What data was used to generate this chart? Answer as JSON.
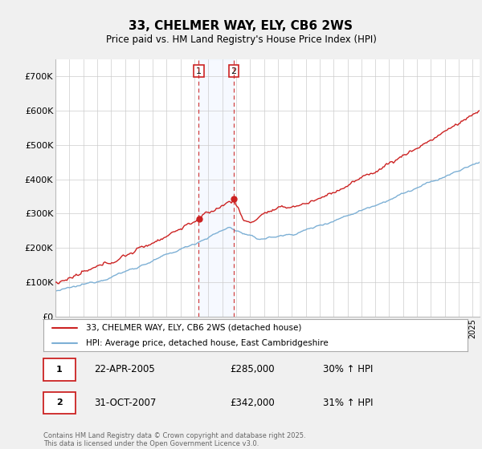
{
  "title": "33, CHELMER WAY, ELY, CB6 2WS",
  "subtitle": "Price paid vs. HM Land Registry's House Price Index (HPI)",
  "legend_line1": "33, CHELMER WAY, ELY, CB6 2WS (detached house)",
  "legend_line2": "HPI: Average price, detached house, East Cambridgeshire",
  "transaction1": {
    "num": "1",
    "date": "22-APR-2005",
    "price": "£285,000",
    "hpi": "30% ↑ HPI",
    "year": 2005.31
  },
  "transaction2": {
    "num": "2",
    "date": "31-OCT-2007",
    "price": "£342,000",
    "hpi": "31% ↑ HPI",
    "year": 2007.83
  },
  "footer": "Contains HM Land Registry data © Crown copyright and database right 2025.\nThis data is licensed under the Open Government Licence v3.0.",
  "hpi_color": "#7db0d5",
  "price_color": "#cc2222",
  "background_color": "#f0f0f0",
  "plot_bg_color": "#ffffff",
  "ylim": [
    0,
    750000
  ],
  "xmin": 1995,
  "xmax": 2025.5,
  "transaction1_price_val": 285000,
  "transaction2_price_val": 342000,
  "transaction1_hpi_val": 220000,
  "transaction2_hpi_val": 262000
}
